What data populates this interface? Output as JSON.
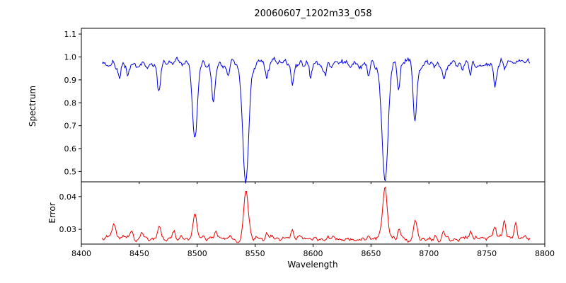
{
  "title": "20060607_1202m33_058",
  "xlabel": "Wavelength",
  "chart_data": [
    {
      "type": "line",
      "panel": "spectrum",
      "title": "20060607_1202m33_058",
      "ylabel": "Spectrum",
      "color": "#0000dd",
      "xlim": [
        8400,
        8800
      ],
      "ylim": [
        0.455,
        1.125
      ],
      "xticks": [
        8400,
        8450,
        8500,
        8550,
        8600,
        8650,
        8700,
        8750,
        8800
      ],
      "xtick_labels": [
        "8400",
        "8450",
        "8500",
        "8550",
        "8600",
        "8650",
        "8700",
        "8750",
        "8800"
      ],
      "yticks": [
        0.5,
        0.6,
        0.7,
        0.8,
        0.9,
        1.0,
        1.1
      ],
      "ytick_labels": [
        "0.5",
        "0.6",
        "0.7",
        "0.8",
        "0.9",
        "1.0",
        "1.1"
      ],
      "x_start": 8418,
      "x_end": 8787,
      "continuum": 0.97,
      "noise_amplitude": 0.02,
      "seed": 20060607,
      "absorption_lines": [
        {
          "center": 8433,
          "depth": 0.07,
          "sigma": 1.2
        },
        {
          "center": 8440,
          "depth": 0.05,
          "sigma": 1.0
        },
        {
          "center": 8467,
          "depth": 0.11,
          "sigma": 1.5
        },
        {
          "center": 8498,
          "depth": 0.34,
          "sigma": 2.0
        },
        {
          "center": 8514,
          "depth": 0.17,
          "sigma": 1.4
        },
        {
          "center": 8527,
          "depth": 0.06,
          "sigma": 1.2
        },
        {
          "center": 8542,
          "depth": 0.52,
          "sigma": 2.6
        },
        {
          "center": 8560,
          "depth": 0.05,
          "sigma": 1.0
        },
        {
          "center": 8582,
          "depth": 0.07,
          "sigma": 1.2
        },
        {
          "center": 8598,
          "depth": 0.06,
          "sigma": 1.0
        },
        {
          "center": 8611,
          "depth": 0.05,
          "sigma": 1.0
        },
        {
          "center": 8648,
          "depth": 0.05,
          "sigma": 1.0
        },
        {
          "center": 8662,
          "depth": 0.53,
          "sigma": 2.6
        },
        {
          "center": 8674,
          "depth": 0.1,
          "sigma": 1.2
        },
        {
          "center": 8688,
          "depth": 0.24,
          "sigma": 1.5
        },
        {
          "center": 8713,
          "depth": 0.07,
          "sigma": 1.2
        },
        {
          "center": 8736,
          "depth": 0.06,
          "sigma": 1.0
        },
        {
          "center": 8757,
          "depth": 0.08,
          "sigma": 1.2
        }
      ]
    },
    {
      "type": "line",
      "panel": "error",
      "ylabel": "Error",
      "color": "#ee0000",
      "xlim": [
        8400,
        8800
      ],
      "ylim": [
        0.0255,
        0.0445
      ],
      "yticks": [
        0.03,
        0.04
      ],
      "ytick_labels": [
        "0.03",
        "0.04"
      ],
      "x_start": 8418,
      "x_end": 8787,
      "baseline": 0.0272,
      "noise_amplitude": 0.0008,
      "seed": 1202,
      "peaks": [
        {
          "center": 8428,
          "height": 0.004,
          "sigma": 1.5
        },
        {
          "center": 8443,
          "height": 0.002,
          "sigma": 1.5
        },
        {
          "center": 8452,
          "height": 0.002,
          "sigma": 1.2
        },
        {
          "center": 8467,
          "height": 0.0035,
          "sigma": 1.5
        },
        {
          "center": 8480,
          "height": 0.002,
          "sigma": 1.2
        },
        {
          "center": 8498,
          "height": 0.0075,
          "sigma": 1.5
        },
        {
          "center": 8516,
          "height": 0.003,
          "sigma": 1.2
        },
        {
          "center": 8542,
          "height": 0.0145,
          "sigma": 2.0
        },
        {
          "center": 8560,
          "height": 0.0015,
          "sigma": 1.2
        },
        {
          "center": 8582,
          "height": 0.002,
          "sigma": 1.2
        },
        {
          "center": 8662,
          "height": 0.0158,
          "sigma": 2.0
        },
        {
          "center": 8674,
          "height": 0.003,
          "sigma": 1.2
        },
        {
          "center": 8688,
          "height": 0.0055,
          "sigma": 1.5
        },
        {
          "center": 8713,
          "height": 0.002,
          "sigma": 1.2
        },
        {
          "center": 8736,
          "height": 0.002,
          "sigma": 1.2
        },
        {
          "center": 8757,
          "height": 0.003,
          "sigma": 1.2
        },
        {
          "center": 8765,
          "height": 0.0065,
          "sigma": 1.2
        },
        {
          "center": 8775,
          "height": 0.0055,
          "sigma": 1.2
        }
      ]
    }
  ]
}
